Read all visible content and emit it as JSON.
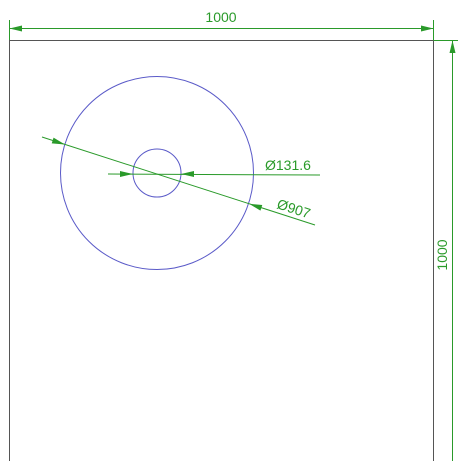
{
  "dimensions": {
    "width": "1000",
    "height": "1000",
    "inner_diameter": "Ø131.6",
    "outer_diameter": "Ø907"
  }
}
